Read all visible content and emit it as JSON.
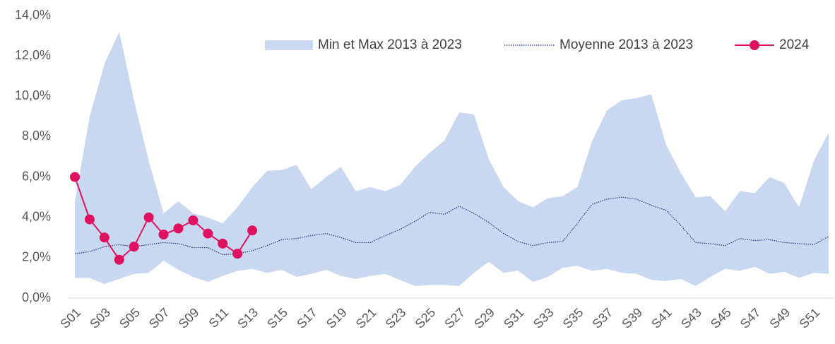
{
  "chart_data": {
    "type": "line",
    "categories": [
      "S01",
      null,
      "S03",
      null,
      "S05",
      null,
      "S07",
      null,
      "S09",
      null,
      "S11",
      null,
      "S13",
      null,
      "S15",
      null,
      "S17",
      null,
      "S19",
      null,
      "S21",
      null,
      "S23",
      null,
      "S25",
      null,
      "S27",
      null,
      "S29",
      null,
      "S31",
      null,
      "S33",
      null,
      "S35",
      null,
      "S37",
      null,
      "S39",
      null,
      "S41",
      null,
      "S43",
      null,
      "S45",
      null,
      "S47",
      null,
      "S49",
      null,
      "S51",
      null
    ],
    "series": [
      {
        "name": "Min et Max 2013 à 2023",
        "color": "#c8d8f0",
        "low": [
          1.0,
          1.0,
          0.7,
          0.95,
          1.2,
          1.25,
          1.85,
          1.4,
          1.05,
          0.8,
          1.1,
          1.35,
          1.45,
          1.25,
          1.4,
          1.05,
          1.2,
          1.4,
          1.1,
          0.95,
          1.1,
          1.2,
          0.9,
          0.6,
          0.65,
          0.65,
          0.6,
          1.25,
          1.8,
          1.25,
          1.35,
          0.8,
          1.05,
          1.5,
          1.6,
          1.35,
          1.45,
          1.25,
          1.2,
          0.9,
          0.85,
          0.95,
          0.6,
          1.05,
          1.45,
          1.35,
          1.55,
          1.2,
          1.3,
          1.0,
          1.25,
          1.2
        ],
        "high": [
          4.8,
          9.0,
          11.6,
          13.2,
          9.8,
          6.8,
          4.2,
          4.8,
          4.2,
          4.0,
          3.7,
          4.5,
          5.5,
          6.3,
          6.35,
          6.6,
          5.4,
          6.0,
          6.5,
          5.3,
          5.5,
          5.3,
          5.6,
          6.5,
          7.2,
          7.8,
          9.2,
          9.1,
          6.9,
          5.5,
          4.8,
          4.5,
          4.95,
          5.05,
          5.5,
          7.8,
          9.3,
          9.8,
          9.9,
          10.1,
          7.6,
          6.2,
          5.0,
          5.05,
          4.3,
          5.3,
          5.2,
          6.0,
          5.7,
          4.5,
          6.8,
          8.2
        ]
      },
      {
        "name": "Moyenne 2013 à 2023",
        "color": "#1f3a7a",
        "values": [
          2.2,
          2.3,
          2.55,
          2.65,
          2.55,
          2.65,
          2.75,
          2.7,
          2.5,
          2.5,
          2.15,
          2.2,
          2.35,
          2.6,
          2.9,
          2.95,
          3.1,
          3.2,
          3.0,
          2.75,
          2.75,
          3.1,
          3.4,
          3.8,
          4.25,
          4.15,
          4.55,
          4.2,
          3.75,
          3.2,
          2.8,
          2.6,
          2.75,
          2.8,
          3.7,
          4.65,
          4.9,
          5.0,
          4.9,
          4.6,
          4.35,
          3.6,
          2.75,
          2.7,
          2.6,
          2.95,
          2.85,
          2.9,
          2.75,
          2.7,
          2.65,
          3.05
        ]
      },
      {
        "name": "2024",
        "color": "#e0115f",
        "values": [
          6.0,
          3.9,
          3.0,
          1.9,
          2.55,
          4.0,
          3.15,
          3.45,
          3.85,
          3.2,
          2.7,
          2.2,
          3.35,
          null,
          null,
          null,
          null,
          null,
          null,
          null,
          null,
          null,
          null,
          null,
          null,
          null,
          null,
          null,
          null,
          null,
          null,
          null,
          null,
          null,
          null,
          null,
          null,
          null,
          null,
          null,
          null,
          null,
          null,
          null,
          null,
          null,
          null,
          null,
          null,
          null,
          null,
          null
        ]
      }
    ],
    "ylim": [
      0,
      14
    ],
    "yticks": [
      {
        "value": 0,
        "label": "0,0%"
      },
      {
        "value": 2,
        "label": "2,0%"
      },
      {
        "value": 4,
        "label": "4,0%"
      },
      {
        "value": 6,
        "label": "6,0%"
      },
      {
        "value": 8,
        "label": "8,0%"
      },
      {
        "value": 10,
        "label": "10,0%"
      },
      {
        "value": 12,
        "label": "12,0%"
      },
      {
        "value": 14,
        "label": "14,0%"
      }
    ],
    "grid": false
  }
}
